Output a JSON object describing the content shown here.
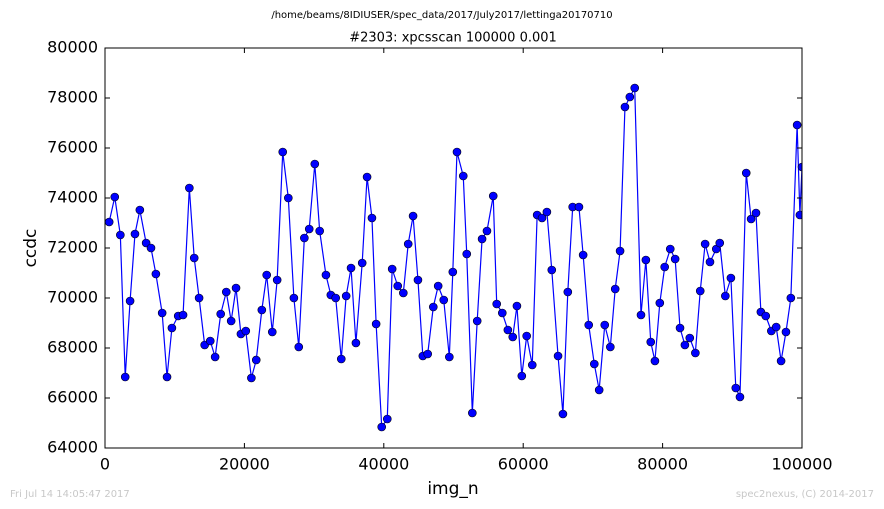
{
  "chart_data": {
    "type": "line",
    "suptitle": "/home/beams/8IDIUSER/spec_data/2017/July2017/lettinga20170710",
    "title": "#2303: xpcsscan 100000 0.001",
    "x_label": "img_n",
    "y_label": "ccdc",
    "footer_left": "Fri Jul 14 14:05:47 2017",
    "footer_right": "spec2nexus, (C) 2014-2017",
    "xlim": [
      0,
      100000
    ],
    "ylim": [
      64000,
      80000
    ],
    "xticks": [
      0,
      20000,
      40000,
      60000,
      80000,
      100000
    ],
    "yticks": [
      64000,
      66000,
      68000,
      70000,
      72000,
      74000,
      76000,
      78000,
      80000
    ],
    "grid": false,
    "color": "#0000ff",
    "x": [
      600,
      1400,
      2200,
      2900,
      3600,
      4300,
      5000,
      5900,
      6600,
      7300,
      8200,
      8900,
      9600,
      10500,
      11200,
      12100,
      12800,
      13500,
      14300,
      15100,
      15800,
      16600,
      17400,
      18100,
      18800,
      19500,
      20200,
      21000,
      21700,
      22500,
      23200,
      24000,
      24700,
      25500,
      26300,
      27100,
      27800,
      28600,
      29300,
      30100,
      30800,
      31700,
      32400,
      33100,
      33900,
      34600,
      35300,
      36000,
      36900,
      37600,
      38300,
      38900,
      39700,
      40500,
      41200,
      42000,
      42800,
      43500,
      44200,
      44900,
      45600,
      46300,
      47100,
      47800,
      48600,
      49400,
      49900,
      50500,
      51400,
      51900,
      52700,
      53400,
      54100,
      54800,
      55700,
      56200,
      57000,
      57800,
      58500,
      59100,
      59800,
      60500,
      61300,
      62000,
      62700,
      63400,
      64100,
      65000,
      65700,
      66400,
      67100,
      68000,
      68600,
      69400,
      70200,
      70900,
      71700,
      72500,
      73200,
      73900,
      74600,
      75300,
      76000,
      76900,
      77600,
      78300,
      78900,
      79600,
      80300,
      81100,
      81800,
      82500,
      83200,
      83900,
      84700,
      85400,
      86100,
      86800,
      87700,
      88200,
      89000,
      89800,
      90500,
      91100,
      92000,
      92700,
      93400,
      94100,
      94800,
      95600,
      96300,
      97000,
      97700,
      98400,
      99300,
      99700,
      100000
    ],
    "values": [
      73040,
      74040,
      72520,
      66840,
      69880,
      72560,
      73520,
      72200,
      72000,
      70960,
      69400,
      66840,
      68800,
      69280,
      69320,
      74400,
      71600,
      70000,
      68120,
      68280,
      67640,
      69360,
      70240,
      69080,
      70400,
      68560,
      68680,
      66800,
      67520,
      69520,
      70920,
      68640,
      70720,
      75840,
      74000,
      70000,
      68040,
      72400,
      72760,
      75360,
      72680,
      70920,
      70120,
      70000,
      67560,
      70080,
      71200,
      68200,
      71400,
      74840,
      73200,
      68960,
      64840,
      65160,
      71160,
      70480,
      70200,
      72160,
      73280,
      70720,
      67680,
      67760,
      69640,
      70480,
      69920,
      67640,
      71040,
      75840,
      74880,
      71760,
      65400,
      69080,
      72360,
      72680,
      74080,
      69760,
      69400,
      68720,
      68440,
      69680,
      66880,
      68480,
      67320,
      73320,
      73200,
      73440,
      71120,
      67680,
      65360,
      70240,
      73640,
      73640,
      71720,
      68920,
      67360,
      66320,
      68920,
      68040,
      70360,
      71880,
      77640,
      78040,
      78400,
      69320,
      71520,
      68240,
      67480,
      69800,
      71240,
      71960,
      71560,
      68800,
      68120,
      68400,
      67800,
      70280,
      72160,
      71440,
      71960,
      72200,
      70080,
      70800,
      66400,
      66040,
      75000,
      73160,
      73400,
      69440,
      69280,
      68680,
      68840,
      67480,
      68640,
      70000,
      76920,
      73320,
      75240
    ]
  }
}
